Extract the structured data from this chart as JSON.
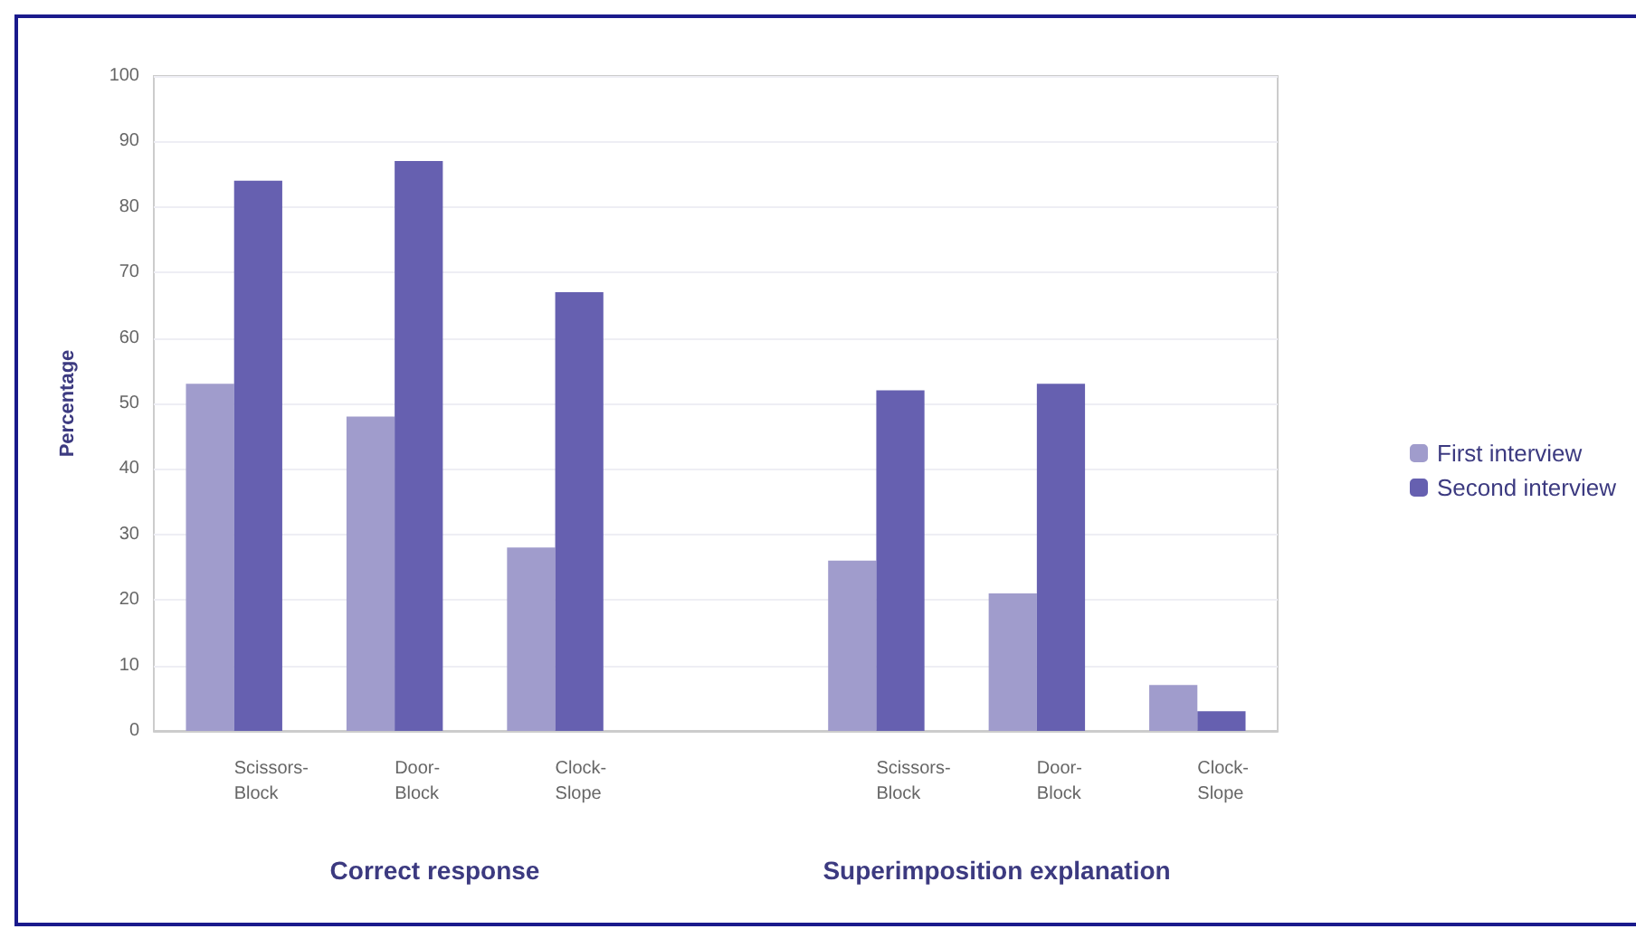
{
  "chart_data": {
    "type": "bar",
    "ylabel": "Percentage",
    "categories": [
      "Scissors-\nBlock",
      "Door-\nBlock",
      "Clock-\nSlope",
      null,
      "Scissors-\nBlock",
      "Door-\nBlock",
      "Clock-\nSlope"
    ],
    "series": [
      {
        "name": "First interview",
        "color": "#a09ccc",
        "values": [
          53,
          48,
          28,
          null,
          26,
          21,
          7
        ]
      },
      {
        "name": "Second interview",
        "color": "#6660b0",
        "values": [
          84,
          87,
          67,
          null,
          52,
          53,
          3
        ]
      }
    ],
    "annotations": [
      "Correct response",
      "Superimposition explanation"
    ],
    "ylim": [
      0,
      100
    ],
    "yticks": [
      0,
      10,
      20,
      30,
      40,
      50,
      60,
      70,
      80,
      90,
      100
    ],
    "grid": "y",
    "legend": "right"
  }
}
